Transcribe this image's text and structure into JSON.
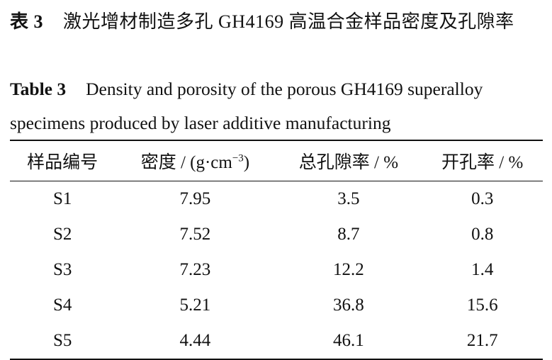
{
  "caption_zh": {
    "label": "表 3",
    "text": "激光增材制造多孔 GH4169 高温合金样品密度及孔隙率"
  },
  "caption_en": {
    "label": "Table 3",
    "text": "Density and porosity of the porous GH4169 superalloy specimens produced by laser additive manufacturing"
  },
  "table": {
    "header": [
      "样品编号",
      {
        "text": "密度 / (g·cm",
        "sup": "−3",
        "tail": ")"
      },
      "总孔隙率 / %",
      "开孔率 / %"
    ],
    "rows": [
      [
        "S1",
        "7.95",
        "3.5",
        "0.3"
      ],
      [
        "S2",
        "7.52",
        "8.7",
        "0.8"
      ],
      [
        "S3",
        "7.23",
        "12.2",
        "1.4"
      ],
      [
        "S4",
        "5.21",
        "36.8",
        "15.6"
      ],
      [
        "S5",
        "4.44",
        "46.1",
        "21.7"
      ]
    ]
  }
}
